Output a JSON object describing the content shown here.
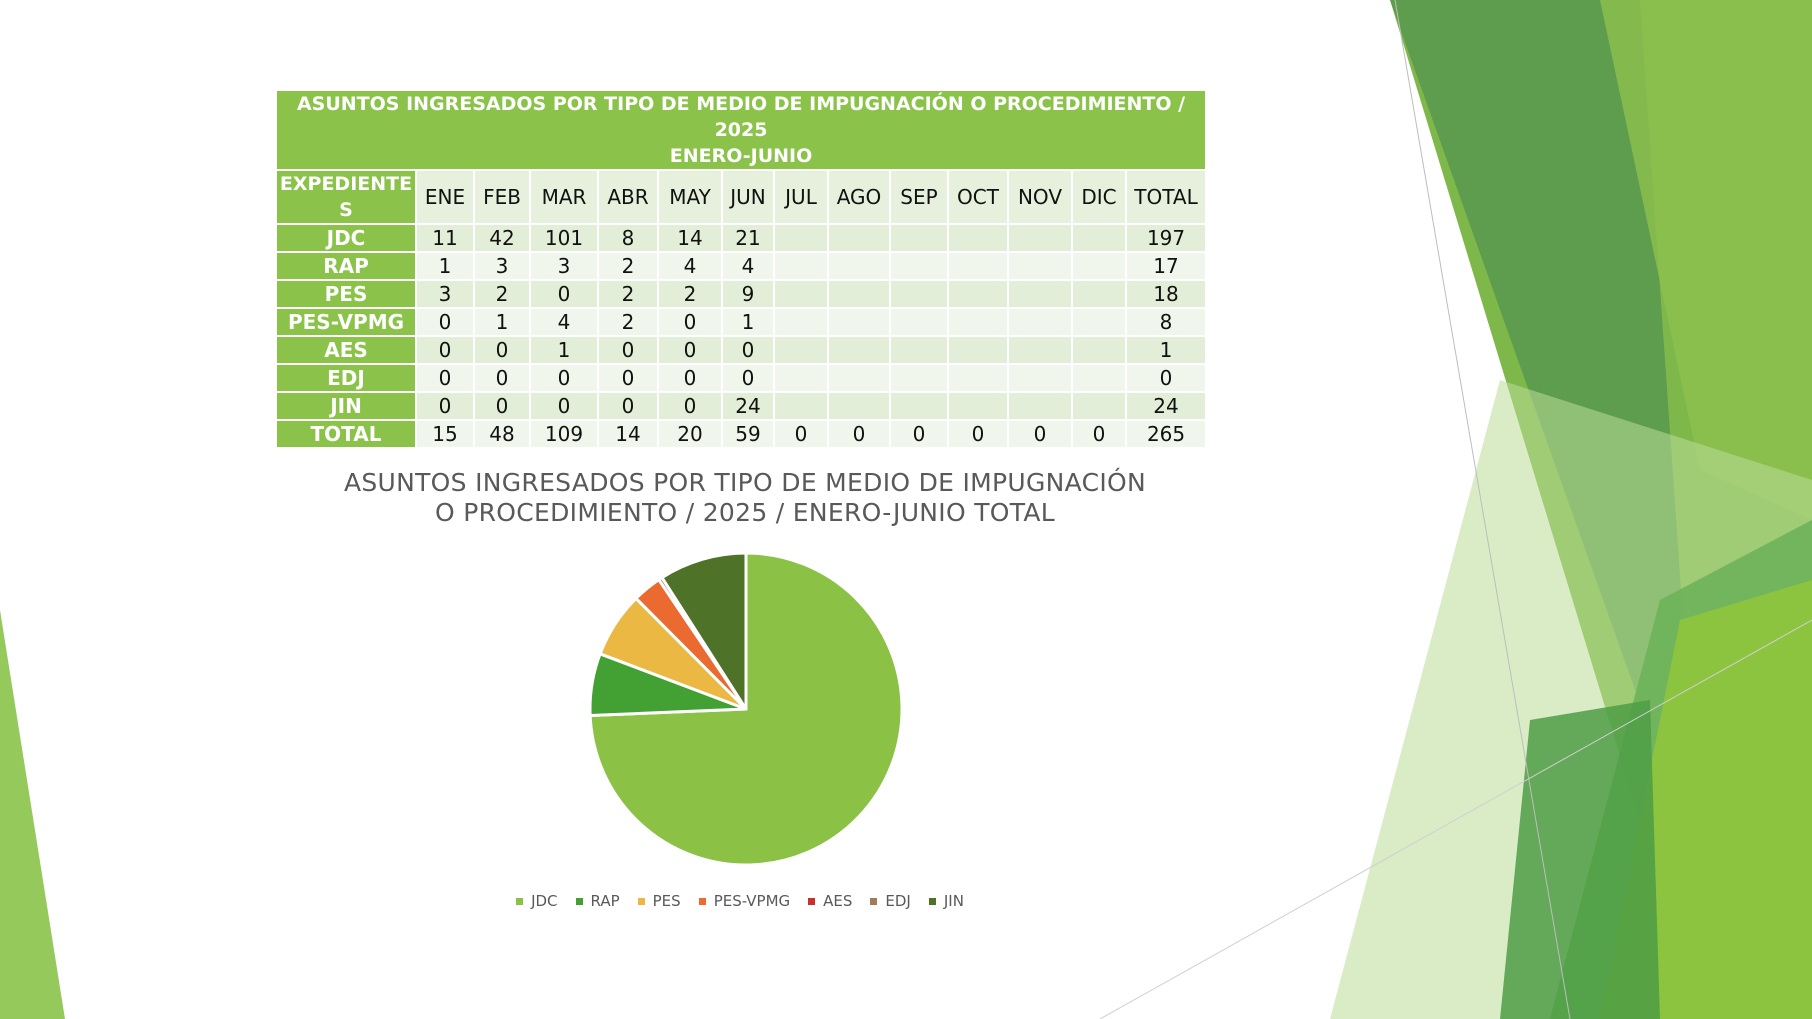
{
  "table": {
    "title_line1": "ASUNTOS INGRESADOS POR TIPO DE MEDIO DE IMPUGNACIÓN O PROCEDIMIENTO / 2025",
    "title_line2": "ENERO-JUNIO",
    "first_header": "EXPEDIENTES",
    "months": [
      "ENE",
      "FEB",
      "MAR",
      "ABR",
      "MAY",
      "JUN",
      "JUL",
      "AGO",
      "SEP",
      "OCT",
      "NOV",
      "DIC"
    ],
    "total_header": "TOTAL",
    "rows": [
      {
        "label": "JDC",
        "values": [
          "11",
          "42",
          "101",
          "8",
          "14",
          "21",
          "",
          "",
          "",
          "",
          "",
          ""
        ],
        "total": "197"
      },
      {
        "label": "RAP",
        "values": [
          "1",
          "3",
          "3",
          "2",
          "4",
          "4",
          "",
          "",
          "",
          "",
          "",
          ""
        ],
        "total": "17"
      },
      {
        "label": "PES",
        "values": [
          "3",
          "2",
          "0",
          "2",
          "2",
          "9",
          "",
          "",
          "",
          "",
          "",
          ""
        ],
        "total": "18"
      },
      {
        "label": "PES-VPMG",
        "values": [
          "0",
          "1",
          "4",
          "2",
          "0",
          "1",
          "",
          "",
          "",
          "",
          "",
          ""
        ],
        "total": "8"
      },
      {
        "label": "AES",
        "values": [
          "0",
          "0",
          "1",
          "0",
          "0",
          "0",
          "",
          "",
          "",
          "",
          "",
          ""
        ],
        "total": "1"
      },
      {
        "label": "EDJ",
        "values": [
          "0",
          "0",
          "0",
          "0",
          "0",
          "0",
          "",
          "",
          "",
          "",
          "",
          ""
        ],
        "total": "0"
      },
      {
        "label": "JIN",
        "values": [
          "0",
          "0",
          "0",
          "0",
          "0",
          "24",
          "",
          "",
          "",
          "",
          "",
          ""
        ],
        "total": "24"
      },
      {
        "label": "TOTAL",
        "values": [
          "15",
          "48",
          "109",
          "14",
          "20",
          "59",
          "0",
          "0",
          "0",
          "0",
          "0",
          "0"
        ],
        "total": "265"
      }
    ]
  },
  "chart_data": {
    "type": "pie",
    "title_line1": "ASUNTOS INGRESADOS POR TIPO DE MEDIO DE IMPUGNACIÓN",
    "title_line2": "O PROCEDIMIENTO / 2025 / ENERO-JUNIO TOTAL",
    "categories": [
      "JDC",
      "RAP",
      "PES",
      "PES-VPMG",
      "AES",
      "EDJ",
      "JIN"
    ],
    "values": [
      197,
      17,
      18,
      8,
      1,
      0,
      24
    ],
    "colors": [
      "#8bc145",
      "#43a033",
      "#eab843",
      "#ea6a2f",
      "#c8302a",
      "#9c7e5a",
      "#4f7229"
    ],
    "legend_position": "bottom"
  },
  "colors": {
    "accent": "#8bc34a",
    "header_row_bg": "#e6f0dd"
  }
}
